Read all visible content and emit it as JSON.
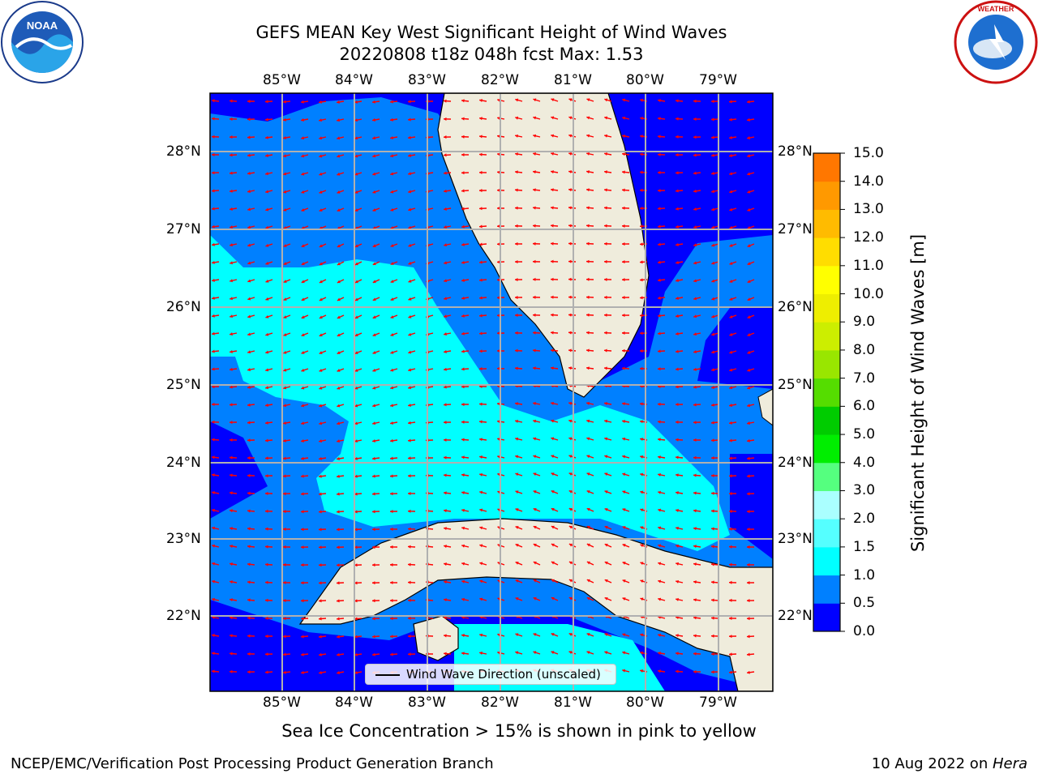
{
  "title": {
    "line1": "GEFS MEAN Key West Significant Height of Wind Waves",
    "line2": "20220808 t18z 048h fcst   Max: 1.53"
  },
  "logos": {
    "left": "NOAA",
    "right": "NATIONAL WEATHER SERVICE"
  },
  "map": {
    "lon_labels": [
      "85°W",
      "84°W",
      "83°W",
      "82°W",
      "81°W",
      "80°W",
      "79°W"
    ],
    "lat_labels": [
      "28°N",
      "27°N",
      "26°N",
      "25°N",
      "24°N",
      "23°N",
      "22°N"
    ],
    "legend_label": "Wind Wave Direction (unscaled)",
    "colors": {
      "land": "#efecdc",
      "ocean_low": "#0000ff",
      "ocean_mid": "#0080ff",
      "ocean_high": "#00ffff",
      "arrows": "#ff0000"
    }
  },
  "colorbar": {
    "title": "Significant Height of Wind Waves [m]",
    "tick_labels": [
      "15.0",
      "14.0",
      "13.0",
      "12.0",
      "11.0",
      "10.0",
      "9.0",
      "8.0",
      "7.0",
      "6.0",
      "5.0",
      "4.0",
      "3.0",
      "2.0",
      "1.5",
      "1.0",
      "0.5",
      "0.0"
    ],
    "colors": [
      "#0000ff",
      "#0080ff",
      "#00ffff",
      "#55ffff",
      "#aaffff",
      "#55ff7f",
      "#00ee00",
      "#00cc00",
      "#55dd00",
      "#99e600",
      "#ccee00",
      "#eeee00",
      "#ffff00",
      "#ffdd00",
      "#ffbb00",
      "#ff9900",
      "#ff7700",
      "#ff4400",
      "#ff2200",
      "#ff0000"
    ]
  },
  "footer": {
    "note": "Sea Ice Concentration > 15% is shown in pink to yellow",
    "credit": "NCEP/EMC/Verification Post Processing Product Generation Branch",
    "date_prefix": "10 Aug 2022 on ",
    "date_host": "Hera"
  }
}
